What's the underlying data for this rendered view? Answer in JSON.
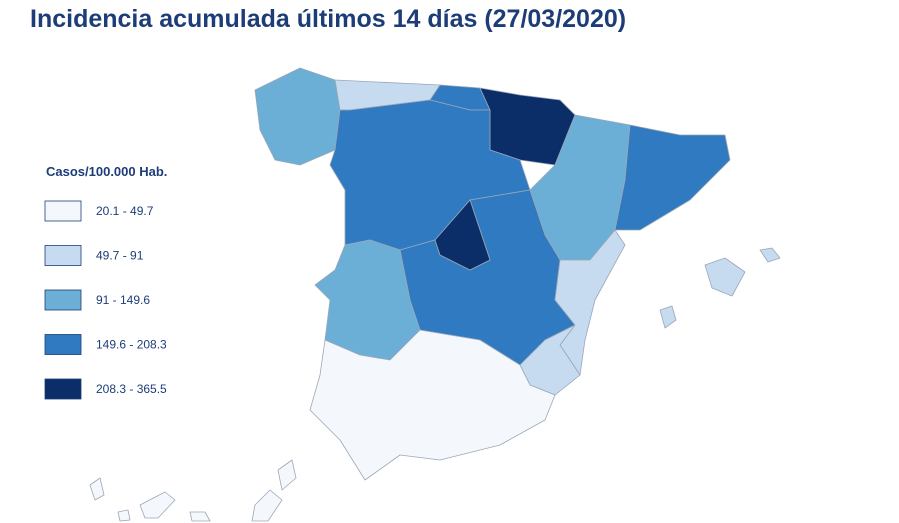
{
  "title": "Incidencia acumulada últimos 14 días (27/03/2020)",
  "legend": {
    "title": "Casos/100.000 Hab.",
    "items": [
      {
        "label": "20.1 - 49.7",
        "color": "#f4f8fd"
      },
      {
        "label": "49.7 - 91",
        "color": "#c6dbef"
      },
      {
        "label": "91 - 149.6",
        "color": "#6baed6"
      },
      {
        "label": "149.6 - 208.3",
        "color": "#2f7ac0"
      },
      {
        "label": "208.3 - 365.5",
        "color": "#0b2e68"
      }
    ]
  }
}
